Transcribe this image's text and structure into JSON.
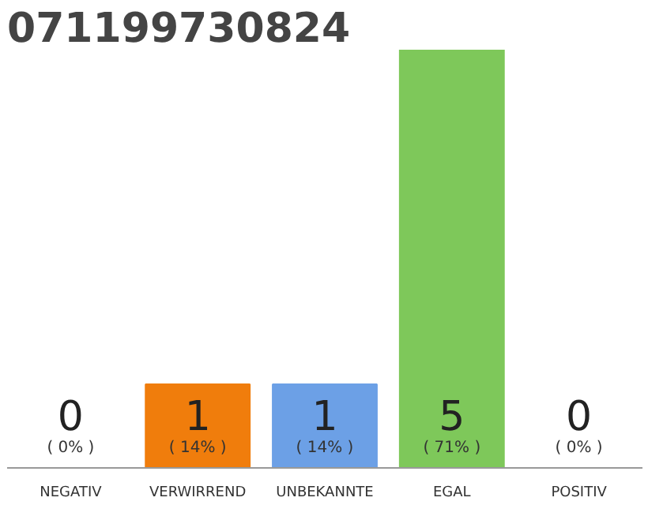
{
  "chart_data": {
    "type": "bar",
    "title": "071199730824",
    "categories": [
      "NEGATIV",
      "VERWIRREND",
      "UNBEKANNTE",
      "EGAL",
      "POSITIV"
    ],
    "values": [
      0,
      1,
      1,
      5,
      0
    ],
    "colors": [
      "#9e9e9e",
      "#f07d0c",
      "#6ca0e6",
      "#7ec85a",
      "#9e9e9e"
    ],
    "ylim": [
      0,
      5
    ],
    "tick_labels": "x",
    "grid": false,
    "data_labels": true,
    "annotations": [
      "( 0% )",
      "( 14% )",
      "( 14% )",
      "( 71% )",
      "( 0% )"
    ]
  }
}
